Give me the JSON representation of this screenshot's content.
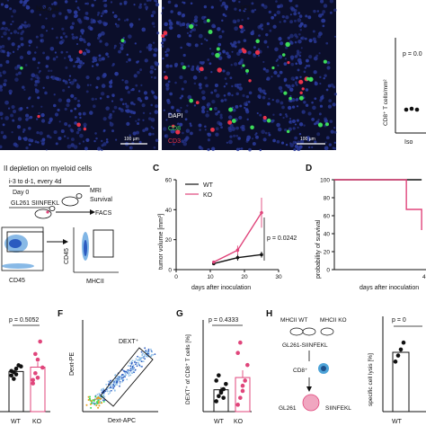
{
  "colors": {
    "wt": "#111111",
    "ko": "#e0457b",
    "dapi": "#2a3a9a",
    "cd8": "#3ddc5a",
    "cd3": "#e8334a",
    "micro_bg": "#0b0e2a"
  },
  "panel_letters": {
    "c": "C",
    "d": "D",
    "f": "F",
    "g": "G",
    "h": "H"
  },
  "micro": {
    "left_title": "Isotype",
    "right_title": "ICI",
    "scale_left": "100 µm",
    "scale_right": "100 µm",
    "legend": [
      "DAPI",
      "CD8",
      "CD3"
    ]
  },
  "topright": {
    "p": "p = 0.0",
    "ylabel": "CD8⁺ T cells/mm²",
    "xtick": "Iso"
  },
  "panel_b": {
    "title": "II depletion on myeloid cells",
    "lines": [
      "i-3 to d-1, every 4d",
      "Day 0",
      "GL261 SIINFEKL"
    ],
    "arrows": [
      "MRI",
      "Survival",
      "FACS"
    ],
    "x1": "CD45",
    "y2": "CD45",
    "x2": "MHCII"
  },
  "panel_c": {
    "ylabel": "tumor volume [mm³]",
    "xlabel": "days after inoculation",
    "p": "p = 0.0242",
    "legend_wt": "WT",
    "legend_ko": "KO",
    "yticks": [
      "0",
      "20",
      "40",
      "60"
    ],
    "xticks": [
      "0",
      "10",
      "20",
      "30"
    ]
  },
  "panel_d": {
    "ylabel": "probability of survival",
    "xlabel": "days after inoculation",
    "yticks": [
      "0",
      "20",
      "40",
      "60",
      "80",
      "100"
    ],
    "xtick": "4"
  },
  "panel_e": {
    "p": "p = 0.5052",
    "xticks": [
      "WT",
      "KO"
    ]
  },
  "panel_f": {
    "gate": "DEXT⁺",
    "xlabel": "Dext-APC",
    "ylabel": "Dext-PE"
  },
  "panel_g": {
    "p": "p = 0.4333",
    "ylabel": "DEXT⁺ of CD8⁺ T cells [%]",
    "xticks": [
      "WT",
      "KO"
    ]
  },
  "panel_h": {
    "mice_wt": "MHCII WT",
    "mice_ko": "MHCII KO",
    "cell_line": "GL261-SIINFEKL",
    "cd8": "CD8⁺",
    "target": "GL261",
    "target_tag": "SIINFEKL",
    "p": "p = 0",
    "ylabel": "specific cell lysis [%]",
    "xtick": "WT"
  },
  "chart_data": [
    {
      "type": "line",
      "title": "",
      "xlabel": "days after inoculation",
      "ylabel": "tumor volume [mm³]",
      "x": [
        11,
        18,
        25
      ],
      "ylim": [
        0,
        60
      ],
      "series": [
        {
          "name": "WT",
          "values": [
            4,
            8,
            10
          ]
        },
        {
          "name": "KO",
          "values": [
            5,
            13,
            38
          ]
        }
      ]
    },
    {
      "type": "line",
      "title": "",
      "xlabel": "days after inoculation",
      "ylabel": "probability of survival",
      "x": [
        0,
        28,
        33,
        40
      ],
      "ylim": [
        0,
        100
      ],
      "series": [
        {
          "name": "WT",
          "values": [
            100,
            100,
            100,
            100
          ]
        },
        {
          "name": "KO",
          "values": [
            100,
            100,
            67,
            44
          ]
        }
      ]
    },
    {
      "type": "scatter",
      "title": "",
      "xlabel": "",
      "ylabel": "",
      "categories": [
        "WT",
        "KO"
      ],
      "series": [
        {
          "name": "WT",
          "values": [
            3.2,
            3.5,
            3.8,
            4.1,
            4.0,
            3.6,
            2.9,
            3.3
          ]
        },
        {
          "name": "KO",
          "values": [
            2.8,
            3.4,
            4.6,
            6.2,
            3.9,
            2.5,
            5.1,
            3.0
          ]
        }
      ]
    },
    {
      "type": "scatter",
      "title": "",
      "xlabel": "",
      "ylabel": "DEXT⁺ of CD8⁺ T cells [%]",
      "categories": [
        "WT",
        "KO"
      ],
      "ylim": [
        0,
        50
      ],
      "series": [
        {
          "name": "WT",
          "values": [
            6,
            9,
            11,
            13,
            16,
            18,
            21,
            12,
            8
          ]
        },
        {
          "name": "KO",
          "values": [
            4,
            8,
            12,
            18,
            27,
            34,
            40,
            15
          ]
        }
      ]
    },
    {
      "type": "scatter",
      "title": "",
      "xlabel": "",
      "ylabel": "specific cell lysis [%]",
      "categories": [
        "WT"
      ],
      "ylim": [
        0,
        100
      ],
      "series": [
        {
          "name": "WT",
          "values": [
            58,
            65,
            72,
            80
          ]
        }
      ]
    }
  ]
}
